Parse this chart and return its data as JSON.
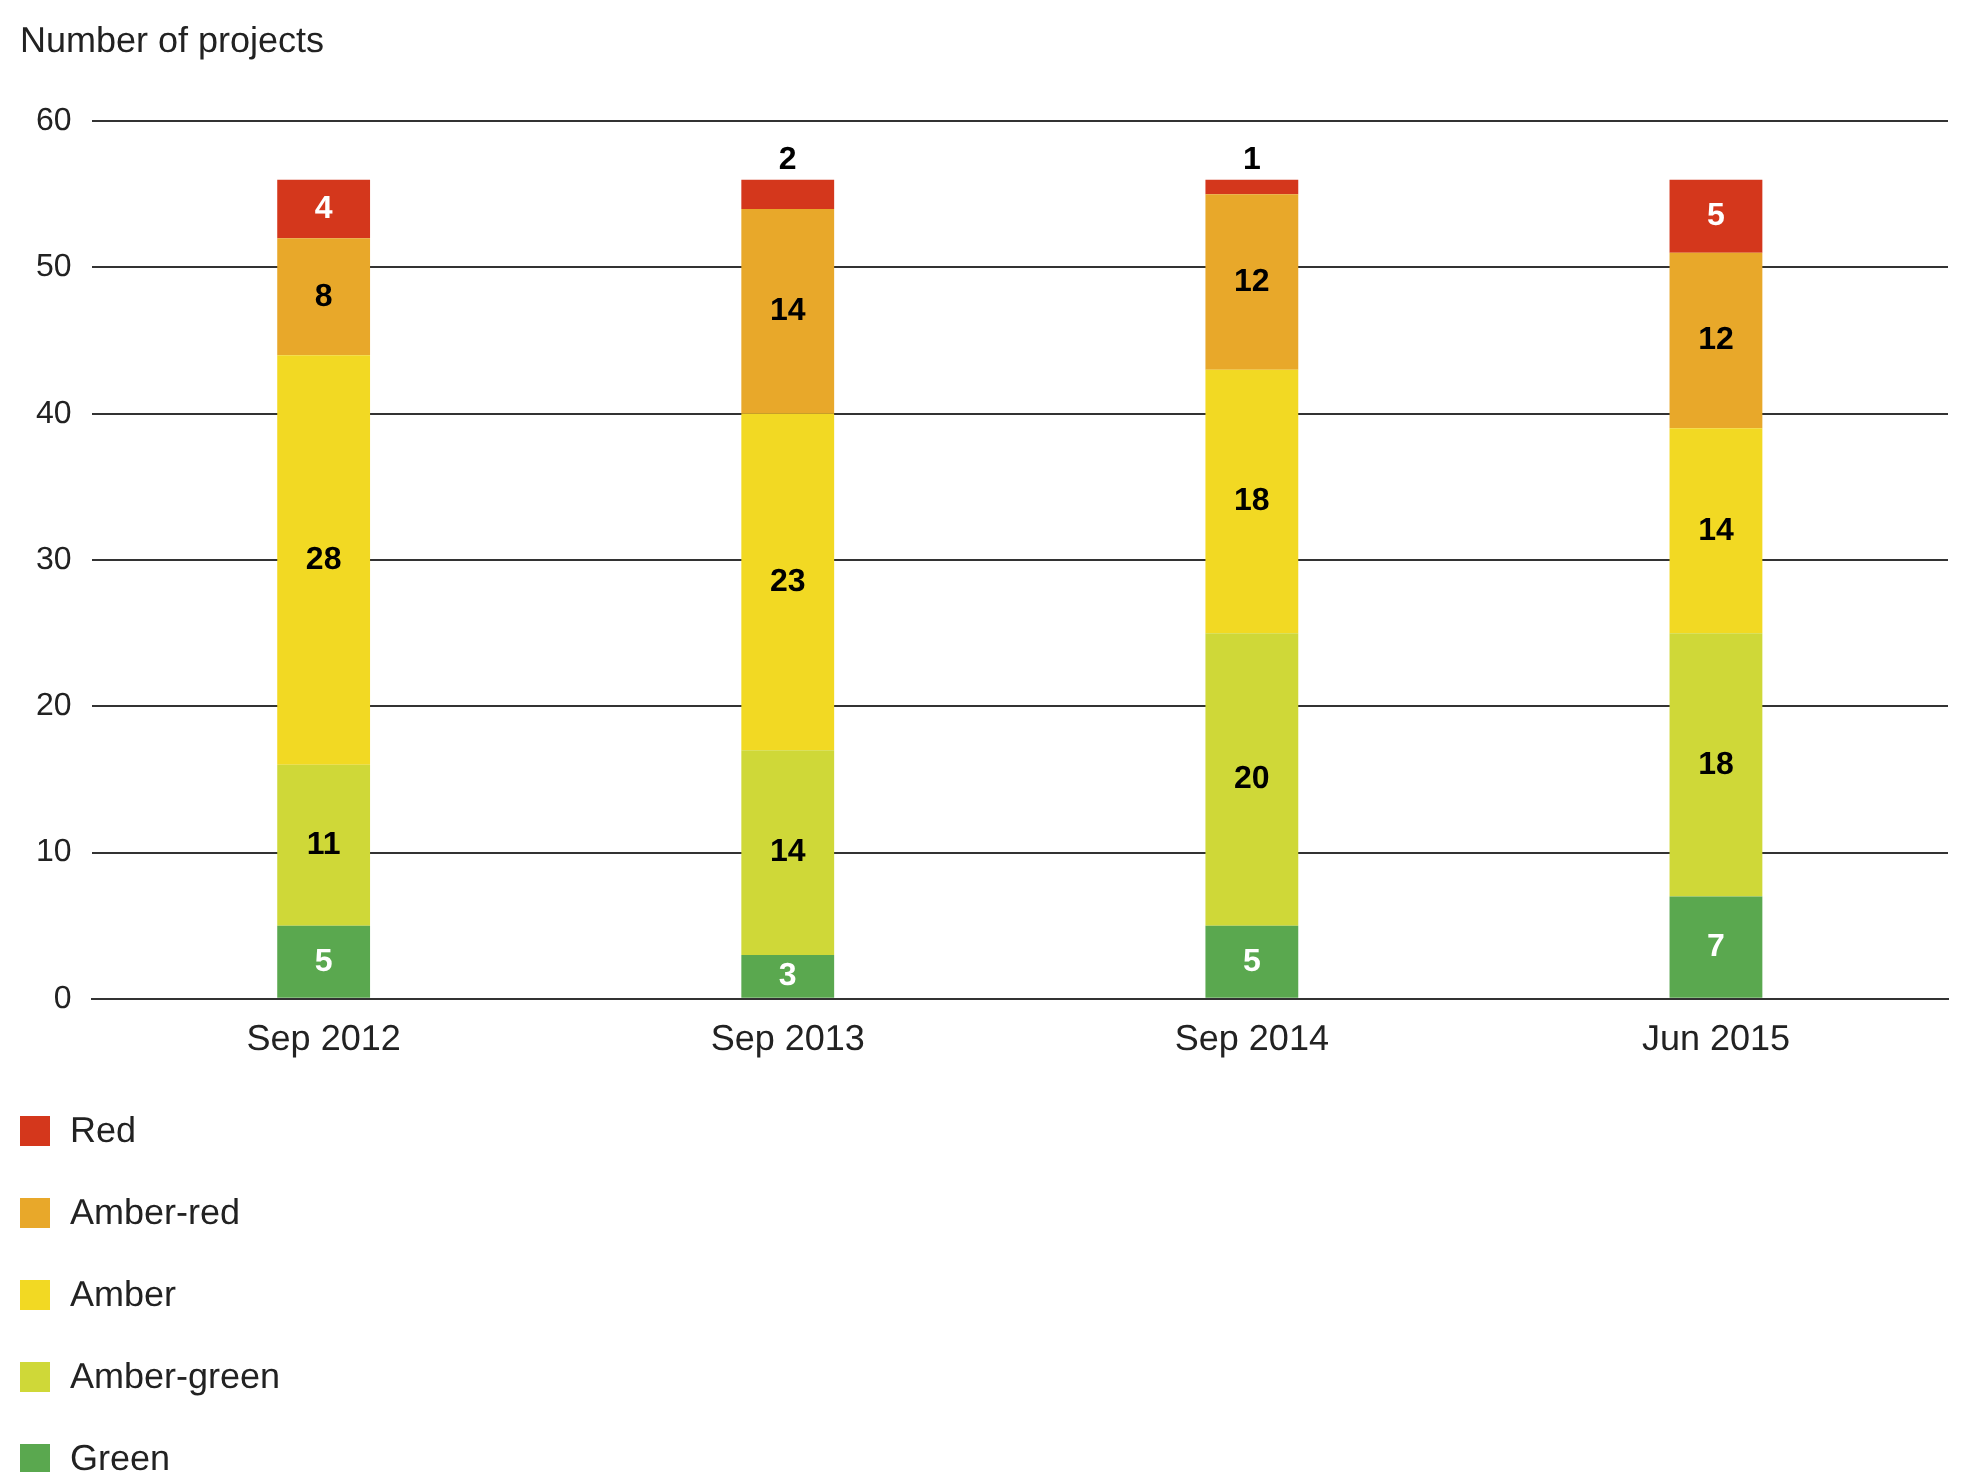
{
  "chart_data": {
    "type": "bar",
    "stacked": true,
    "ylabel": "Number of projects",
    "categories": [
      "Sep 2012",
      "Sep 2013",
      "Sep 2014",
      "Jun 2015"
    ],
    "series": [
      {
        "name": "Green",
        "color": "#5aa84f",
        "values": [
          5,
          3,
          5,
          7
        ]
      },
      {
        "name": "Amber-green",
        "color": "#cfd838",
        "values": [
          11,
          14,
          20,
          18
        ]
      },
      {
        "name": "Amber",
        "color": "#f2d923",
        "values": [
          28,
          23,
          18,
          14
        ]
      },
      {
        "name": "Amber-red",
        "color": "#e8a82a",
        "values": [
          8,
          14,
          12,
          12
        ]
      },
      {
        "name": "Red",
        "color": "#d4371c",
        "values": [
          4,
          2,
          1,
          5
        ]
      }
    ],
    "ylim": [
      0,
      60
    ],
    "yticks": [
      0,
      10,
      20,
      30,
      40,
      50,
      60
    ],
    "grid": "y",
    "legend": "bottom left",
    "data_labels": true
  }
}
